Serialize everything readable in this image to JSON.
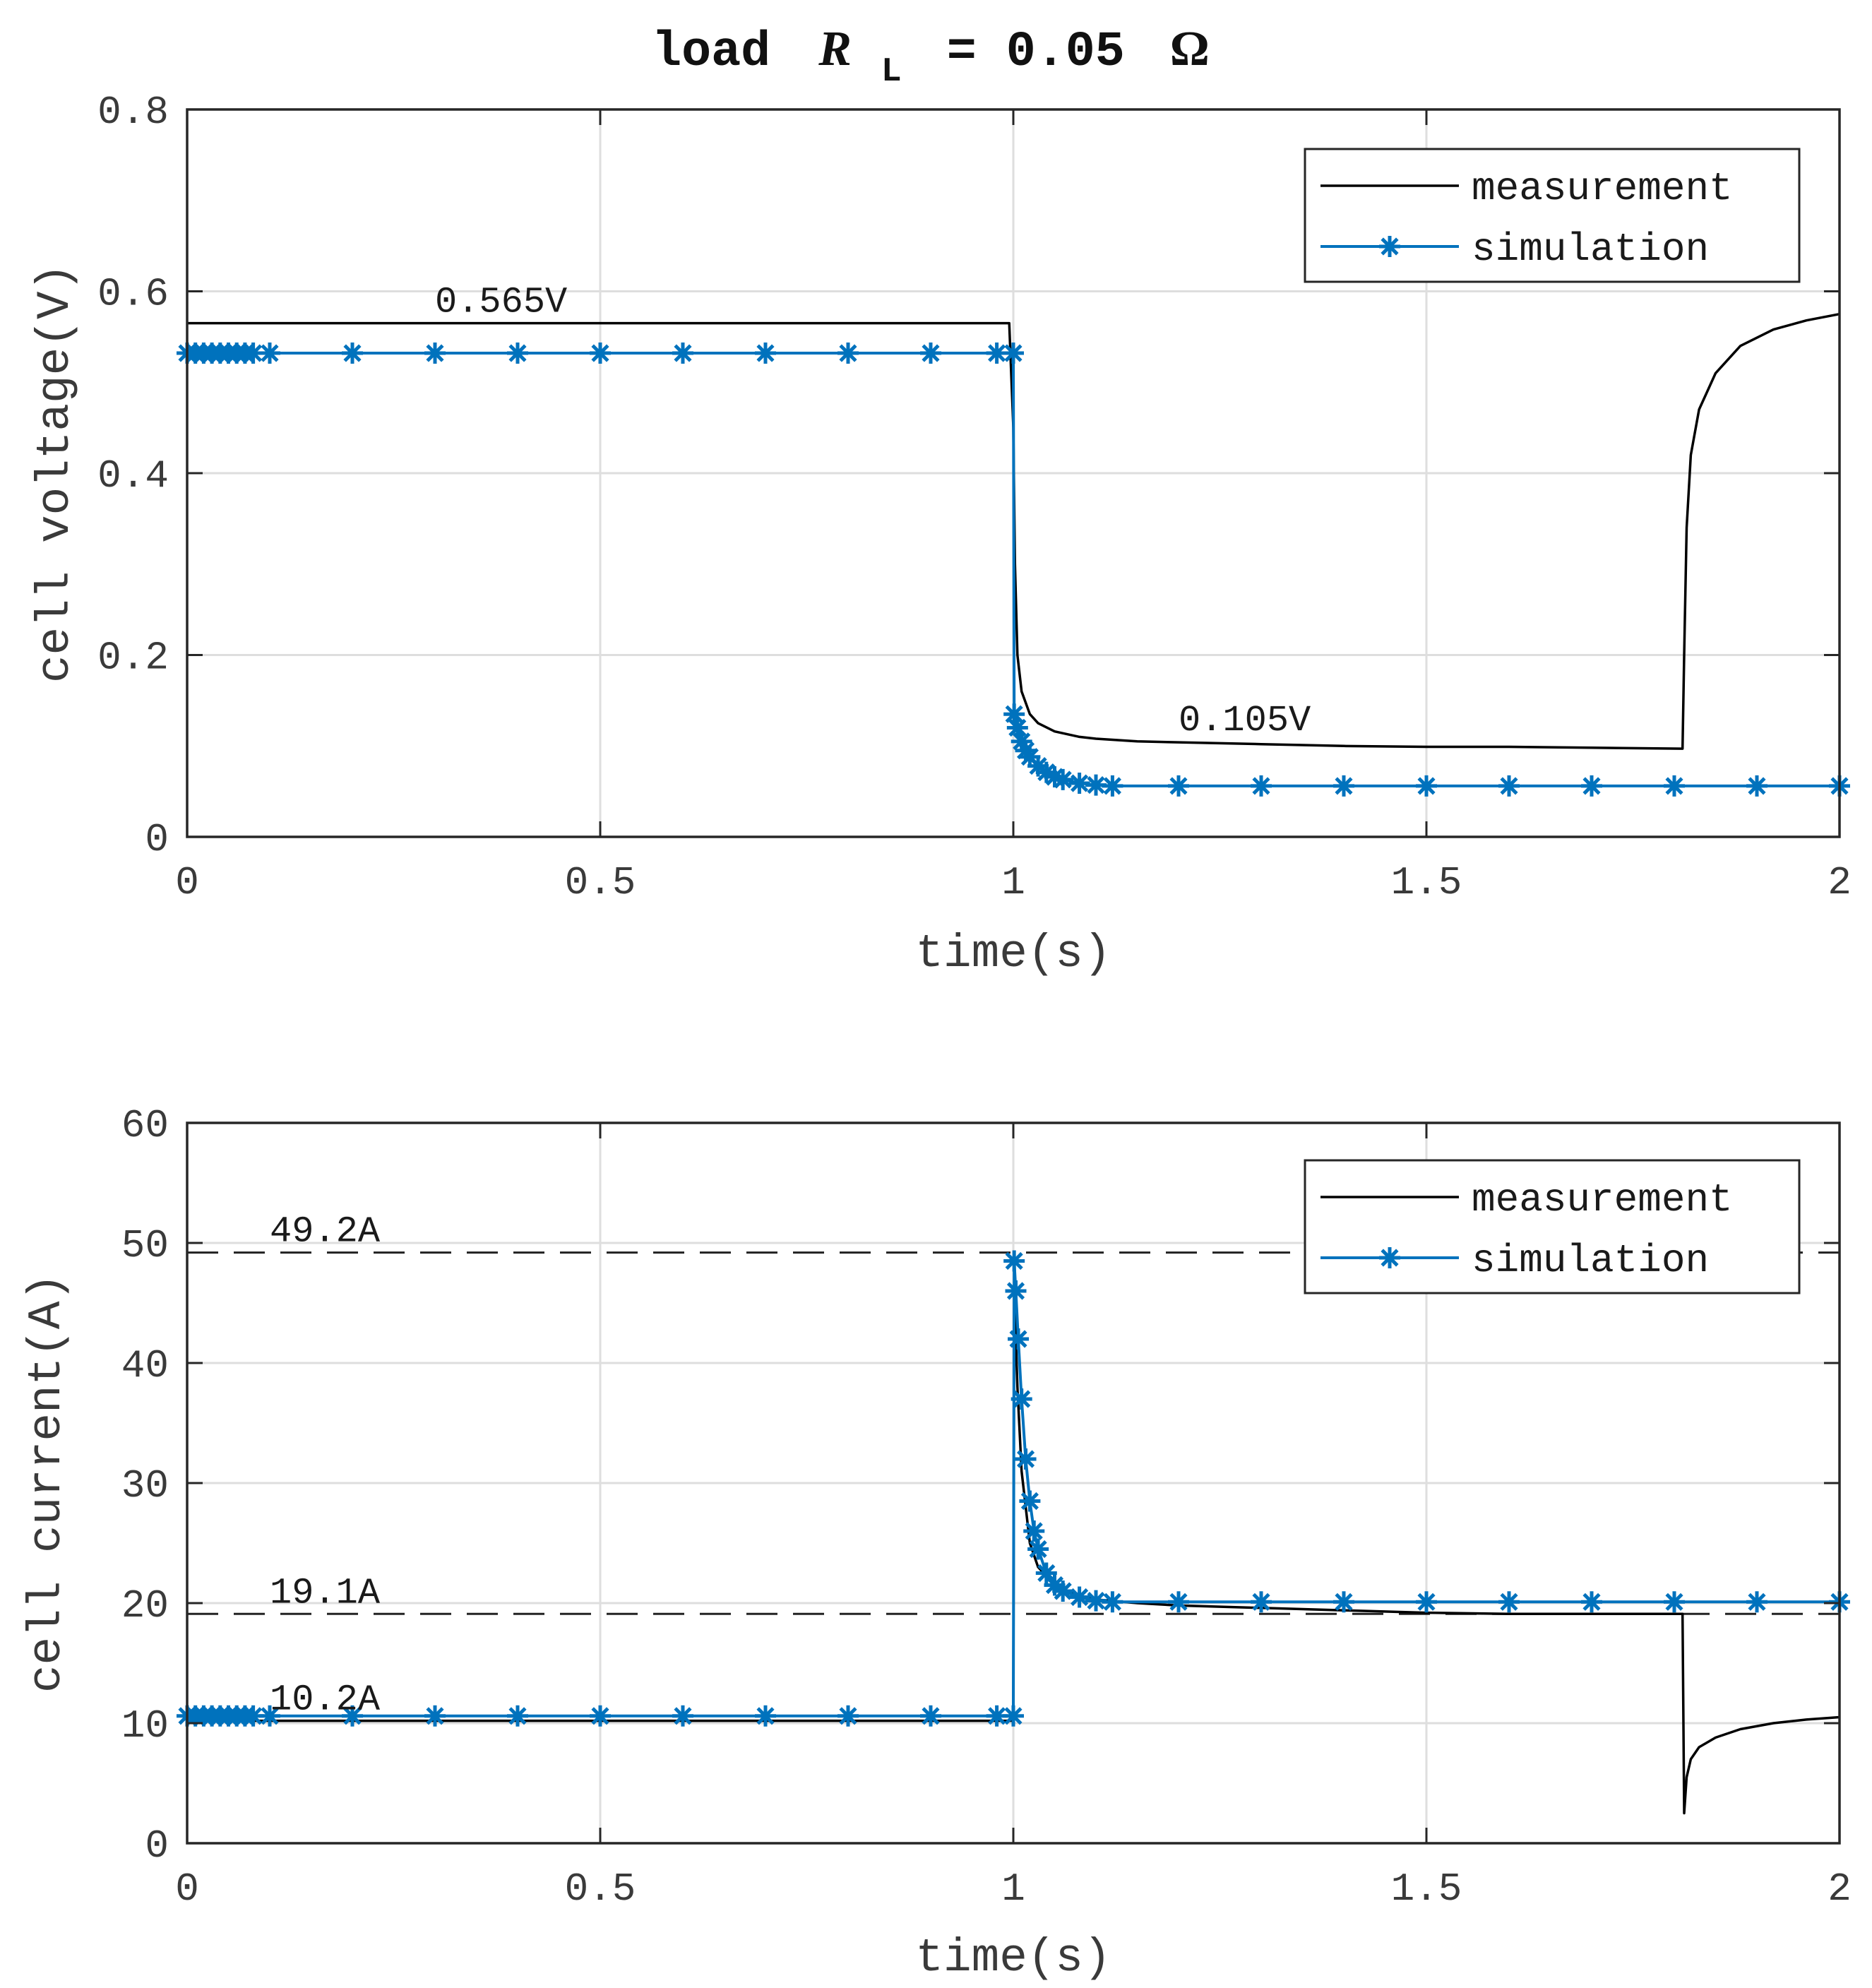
{
  "chart_data": [
    {
      "type": "line",
      "title": "load",
      "title_symbol": "R",
      "title_subscript": "L",
      "title_value": "= 0.05",
      "title_unit": "Ω",
      "xlabel": "time(s)",
      "ylabel": "cell voltage(V)",
      "xlim": [
        0,
        2
      ],
      "ylim": [
        0,
        0.8
      ],
      "xticks": [
        "0",
        "0.5",
        "1",
        "1.5",
        "2"
      ],
      "yticks": [
        "0",
        "0.2",
        "0.4",
        "0.6",
        "0.8"
      ],
      "grid": true,
      "legend": "top-right",
      "series": [
        {
          "name": "measurement",
          "color": "#000000",
          "marker": "none",
          "x": [
            0,
            0.995,
            1.0,
            1.002,
            1.005,
            1.01,
            1.02,
            1.03,
            1.05,
            1.08,
            1.1,
            1.15,
            1.2,
            1.3,
            1.4,
            1.5,
            1.6,
            1.7,
            1.81,
            1.812,
            1.815,
            1.82,
            1.83,
            1.85,
            1.88,
            1.92,
            1.96,
            2.0
          ],
          "values": [
            0.565,
            0.565,
            0.45,
            0.3,
            0.2,
            0.16,
            0.135,
            0.125,
            0.116,
            0.11,
            0.108,
            0.105,
            0.104,
            0.102,
            0.1,
            0.099,
            0.099,
            0.098,
            0.097,
            0.2,
            0.34,
            0.42,
            0.47,
            0.51,
            0.54,
            0.558,
            0.568,
            0.575
          ]
        },
        {
          "name": "simulation",
          "color": "#0072bd",
          "marker": "asterisk",
          "x": [
            0,
            0.01,
            0.02,
            0.03,
            0.04,
            0.05,
            0.06,
            0.07,
            0.08,
            0.1,
            0.2,
            0.3,
            0.4,
            0.5,
            0.6,
            0.7,
            0.8,
            0.9,
            0.98,
            1.0,
            1.001,
            1.005,
            1.01,
            1.015,
            1.02,
            1.03,
            1.04,
            1.05,
            1.06,
            1.08,
            1.1,
            1.12,
            1.2,
            1.3,
            1.4,
            1.5,
            1.6,
            1.7,
            1.8,
            1.9,
            2.0
          ],
          "values": [
            0.532,
            0.532,
            0.532,
            0.532,
            0.532,
            0.532,
            0.532,
            0.532,
            0.532,
            0.532,
            0.532,
            0.532,
            0.532,
            0.532,
            0.532,
            0.532,
            0.532,
            0.532,
            0.532,
            0.532,
            0.135,
            0.12,
            0.105,
            0.095,
            0.088,
            0.078,
            0.071,
            0.066,
            0.063,
            0.059,
            0.057,
            0.056,
            0.056,
            0.056,
            0.056,
            0.056,
            0.056,
            0.056,
            0.056,
            0.056,
            0.056
          ]
        }
      ],
      "annotations": [
        {
          "text": "0.565V",
          "x": 0.3,
          "y": 0.565
        },
        {
          "text": "0.105V",
          "x": 1.2,
          "y": 0.105
        }
      ],
      "reference_lines": []
    },
    {
      "type": "line",
      "title": "",
      "xlabel": "time(s)",
      "ylabel": "cell current(A)",
      "xlim": [
        0,
        2
      ],
      "ylim": [
        0,
        60
      ],
      "xticks": [
        "0",
        "0.5",
        "1",
        "1.5",
        "2"
      ],
      "yticks": [
        "0",
        "10",
        "20",
        "30",
        "40",
        "50",
        "60"
      ],
      "grid": true,
      "legend": "top-right",
      "series": [
        {
          "name": "measurement",
          "color": "#000000",
          "marker": "none",
          "x": [
            0,
            0.995,
            1.0,
            1.001,
            1.005,
            1.01,
            1.02,
            1.03,
            1.05,
            1.08,
            1.1,
            1.15,
            1.2,
            1.3,
            1.4,
            1.5,
            1.6,
            1.7,
            1.81,
            1.812,
            1.815,
            1.82,
            1.83,
            1.85,
            1.88,
            1.92,
            1.96,
            2.0
          ],
          "values": [
            10.2,
            10.2,
            10.2,
            46.0,
            38.0,
            31.0,
            25.0,
            23.0,
            21.5,
            20.6,
            20.3,
            20.0,
            19.8,
            19.6,
            19.4,
            19.2,
            19.1,
            19.1,
            19.1,
            2.5,
            5.5,
            7.0,
            8.0,
            8.8,
            9.5,
            10.0,
            10.3,
            10.5
          ]
        },
        {
          "name": "simulation",
          "color": "#0072bd",
          "marker": "asterisk",
          "x": [
            0,
            0.01,
            0.02,
            0.03,
            0.04,
            0.05,
            0.06,
            0.07,
            0.08,
            0.1,
            0.2,
            0.3,
            0.4,
            0.5,
            0.6,
            0.7,
            0.8,
            0.9,
            0.98,
            1.0,
            1.001,
            1.003,
            1.006,
            1.01,
            1.015,
            1.02,
            1.025,
            1.03,
            1.04,
            1.05,
            1.06,
            1.08,
            1.1,
            1.12,
            1.2,
            1.3,
            1.4,
            1.5,
            1.6,
            1.7,
            1.8,
            1.9,
            2.0
          ],
          "values": [
            10.6,
            10.6,
            10.6,
            10.6,
            10.6,
            10.6,
            10.6,
            10.6,
            10.6,
            10.6,
            10.6,
            10.6,
            10.6,
            10.6,
            10.6,
            10.6,
            10.6,
            10.6,
            10.6,
            10.6,
            48.5,
            46.0,
            42.0,
            37.0,
            32.0,
            28.5,
            26.0,
            24.5,
            22.5,
            21.5,
            21.0,
            20.5,
            20.2,
            20.1,
            20.1,
            20.1,
            20.1,
            20.1,
            20.1,
            20.1,
            20.1,
            20.1,
            20.1
          ]
        }
      ],
      "annotations": [
        {
          "text": "49.2A",
          "x": 0.1,
          "y": 49.2
        },
        {
          "text": "19.1A",
          "x": 0.1,
          "y": 19.1
        },
        {
          "text": "10.2A",
          "x": 0.1,
          "y": 10.2
        }
      ],
      "reference_lines": [
        49.2,
        19.1
      ]
    }
  ]
}
